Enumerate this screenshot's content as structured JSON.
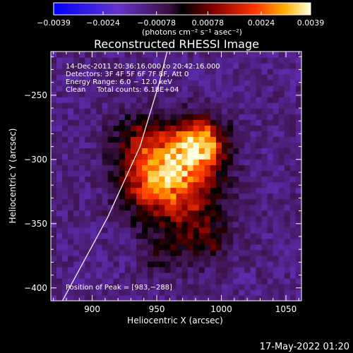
{
  "chart_data": {
    "type": "heatmap",
    "title": "Reconstructed RHESSI Image",
    "xlabel": "Heliocentric X (arcsec)",
    "ylabel": "Heliocentric Y (arcsec)",
    "xlim": [
      868,
      1062
    ],
    "ylim": [
      -410,
      -216
    ],
    "x_ticks": [
      900,
      950,
      1000,
      1050
    ],
    "y_ticks": [
      -250,
      -300,
      -350,
      -400
    ],
    "x_tick_labels": [
      "900",
      "950",
      "1000",
      "1050"
    ],
    "y_tick_labels": [
      "−250",
      "−300",
      "−350",
      "−400"
    ],
    "colorbar": {
      "range": [
        -0.0039,
        0.0039
      ],
      "ticks": [
        -0.0039,
        -0.0024,
        -0.00078,
        0.00078,
        0.0024,
        0.0039
      ],
      "tick_labels": [
        "−0.0039",
        "−0.0024",
        "−0.00078",
        "0.00078",
        "0.0024",
        "0.0039"
      ],
      "unit_label": "(photons cm⁻² s⁻¹ asec⁻²)"
    },
    "annotations": {
      "time_range": "14-Dec-2011 20:36:16.000 to 20:42:16.000",
      "detectors": "Detectors: 3F 4F 5F 6F 7F 8F, Att 0",
      "energy_range": "Energy Range: 6.0 − 12.0 keV",
      "clean_counts": "Clean     Total counts: 6.18E+04",
      "peak_position": "Position of Peak = [983,−288]"
    },
    "peak": [
      983,
      -288
    ],
    "sources": [
      {
        "x": 983,
        "y": -288,
        "sigma": 14,
        "amp": 0.0039
      },
      {
        "x": 960,
        "y": -305,
        "sigma": 20,
        "amp": 0.0028
      },
      {
        "x": 945,
        "y": -320,
        "sigma": 18,
        "amp": 0.0018
      },
      {
        "x": 975,
        "y": -335,
        "sigma": 22,
        "amp": 0.0016
      },
      {
        "x": 935,
        "y": -285,
        "sigma": 16,
        "amp": 0.0012
      },
      {
        "x": 990,
        "y": -365,
        "sigma": 12,
        "amp": 0.001
      },
      {
        "x": 955,
        "y": -375,
        "sigma": 12,
        "amp": 0.0008
      }
    ],
    "limb_curve": [
      [
        877,
        -410
      ],
      [
        912,
        -345
      ],
      [
        937,
        -290
      ],
      [
        952,
        -240
      ],
      [
        958,
        -216
      ]
    ]
  },
  "footer": {
    "datetime": "17-May-2022 01:20"
  }
}
